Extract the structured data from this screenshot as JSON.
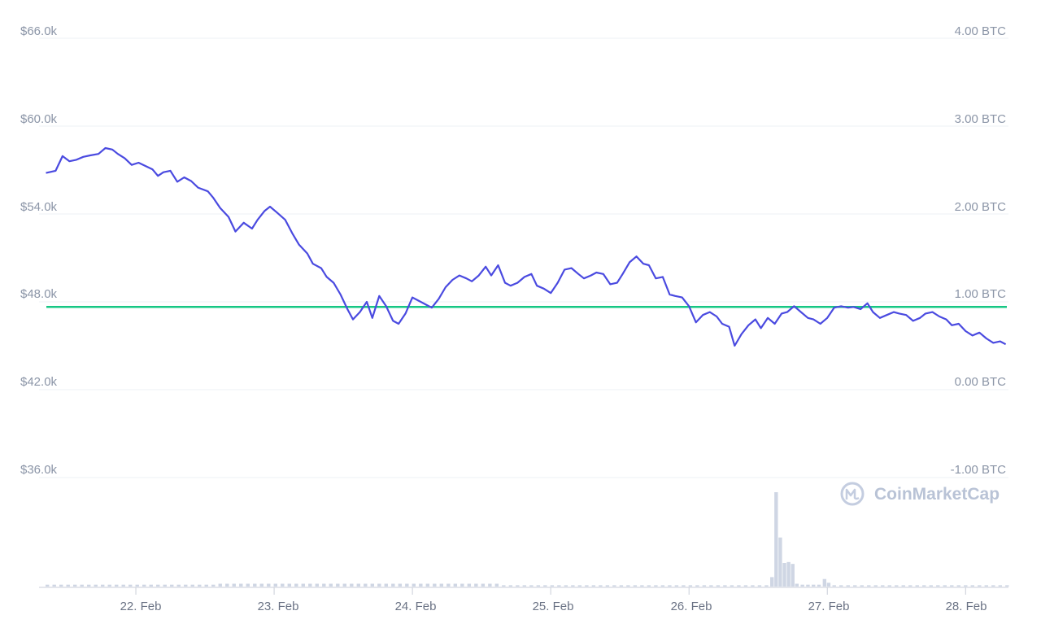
{
  "chart_data": {
    "type": "line",
    "watermark": "CoinMarketCap",
    "colors": {
      "price": "#4a4ae0",
      "reference": "#16c784",
      "volume": "#cfd6e4",
      "grid": "#eef1f6",
      "tick": "#8b95a7"
    },
    "y_left": {
      "ticks": [
        "$66.0k",
        "$60.0k",
        "$54.0k",
        "$48.0k",
        "$42.0k",
        "$36.0k"
      ],
      "range": [
        36000,
        66000
      ]
    },
    "y_right": {
      "ticks": [
        "4.00 BTC",
        "3.00 BTC",
        "2.00 BTC",
        "1.00 BTC",
        "0.00 BTC",
        "-1.00 BTC"
      ],
      "range": [
        -1,
        4
      ]
    },
    "x": {
      "ticks": [
        "22. Feb",
        "23. Feb",
        "24. Feb",
        "25. Feb",
        "26. Feb",
        "27. Feb",
        "28. Feb"
      ],
      "range": [
        21.3,
        28.31
      ]
    },
    "reference_line": {
      "value": 47650
    },
    "series": [
      {
        "values": [
          [
            21.35,
            56800
          ],
          [
            21.42,
            56950
          ],
          [
            21.47,
            57950
          ],
          [
            21.52,
            57600
          ],
          [
            21.57,
            57700
          ],
          [
            21.62,
            57900
          ],
          [
            21.67,
            58000
          ],
          [
            21.73,
            58100
          ],
          [
            21.78,
            58500
          ],
          [
            21.83,
            58400
          ],
          [
            21.87,
            58100
          ],
          [
            21.92,
            57800
          ],
          [
            21.97,
            57350
          ],
          [
            22.02,
            57500
          ],
          [
            22.12,
            57050
          ],
          [
            22.16,
            56600
          ],
          [
            22.2,
            56850
          ],
          [
            22.25,
            56950
          ],
          [
            22.3,
            56200
          ],
          [
            22.35,
            56500
          ],
          [
            22.4,
            56250
          ],
          [
            22.45,
            55800
          ],
          [
            22.52,
            55550
          ],
          [
            22.56,
            55100
          ],
          [
            22.61,
            54400
          ],
          [
            22.67,
            53800
          ],
          [
            22.72,
            52800
          ],
          [
            22.78,
            53400
          ],
          [
            22.84,
            53000
          ],
          [
            22.88,
            53600
          ],
          [
            22.93,
            54200
          ],
          [
            22.97,
            54500
          ],
          [
            23.02,
            54100
          ],
          [
            23.08,
            53600
          ],
          [
            23.13,
            52700
          ],
          [
            23.18,
            51900
          ],
          [
            23.24,
            51300
          ],
          [
            23.28,
            50600
          ],
          [
            23.34,
            50300
          ],
          [
            23.38,
            49700
          ],
          [
            23.43,
            49300
          ],
          [
            23.48,
            48500
          ],
          [
            23.53,
            47500
          ],
          [
            23.57,
            46800
          ],
          [
            23.62,
            47300
          ],
          [
            23.67,
            48000
          ],
          [
            23.71,
            46900
          ],
          [
            23.76,
            48400
          ],
          [
            23.81,
            47700
          ],
          [
            23.86,
            46700
          ],
          [
            23.9,
            46500
          ],
          [
            23.95,
            47200
          ],
          [
            24.0,
            48300
          ],
          [
            24.06,
            48000
          ],
          [
            24.1,
            47800
          ],
          [
            24.14,
            47600
          ],
          [
            24.19,
            48200
          ],
          [
            24.24,
            49000
          ],
          [
            24.29,
            49500
          ],
          [
            24.34,
            49800
          ],
          [
            24.39,
            49600
          ],
          [
            24.43,
            49400
          ],
          [
            24.48,
            49800
          ],
          [
            24.53,
            50400
          ],
          [
            24.57,
            49800
          ],
          [
            24.62,
            50500
          ],
          [
            24.67,
            49300
          ],
          [
            24.71,
            49100
          ],
          [
            24.76,
            49300
          ],
          [
            24.81,
            49700
          ],
          [
            24.86,
            49900
          ],
          [
            24.9,
            49100
          ],
          [
            24.95,
            48900
          ],
          [
            25.0,
            48600
          ],
          [
            25.05,
            49300
          ],
          [
            25.1,
            50200
          ],
          [
            25.15,
            50300
          ],
          [
            25.2,
            49900
          ],
          [
            25.24,
            49600
          ],
          [
            25.29,
            49800
          ],
          [
            25.33,
            50000
          ],
          [
            25.38,
            49900
          ],
          [
            25.43,
            49200
          ],
          [
            25.48,
            49300
          ],
          [
            25.52,
            49900
          ],
          [
            25.57,
            50700
          ],
          [
            25.62,
            51100
          ],
          [
            25.67,
            50600
          ],
          [
            25.71,
            50500
          ],
          [
            25.76,
            49600
          ],
          [
            25.81,
            49700
          ],
          [
            25.86,
            48500
          ],
          [
            25.9,
            48400
          ],
          [
            25.95,
            48300
          ],
          [
            26.0,
            47700
          ],
          [
            26.05,
            46600
          ],
          [
            26.1,
            47100
          ],
          [
            26.15,
            47300
          ],
          [
            26.2,
            47000
          ],
          [
            26.24,
            46500
          ],
          [
            26.29,
            46300
          ],
          [
            26.33,
            45000
          ],
          [
            26.38,
            45800
          ],
          [
            26.43,
            46400
          ],
          [
            26.48,
            46800
          ],
          [
            26.52,
            46200
          ],
          [
            26.57,
            46900
          ],
          [
            26.62,
            46500
          ],
          [
            26.67,
            47200
          ],
          [
            26.71,
            47300
          ],
          [
            26.76,
            47700
          ],
          [
            26.81,
            47300
          ],
          [
            26.86,
            46900
          ],
          [
            26.9,
            46800
          ],
          [
            26.95,
            46500
          ],
          [
            27.0,
            46900
          ],
          [
            27.05,
            47600
          ],
          [
            27.1,
            47700
          ],
          [
            27.15,
            47600
          ],
          [
            27.19,
            47650
          ],
          [
            27.24,
            47500
          ],
          [
            27.29,
            47900
          ],
          [
            27.33,
            47300
          ],
          [
            27.38,
            46900
          ],
          [
            27.43,
            47100
          ],
          [
            27.48,
            47300
          ],
          [
            27.52,
            47200
          ],
          [
            27.57,
            47100
          ],
          [
            27.62,
            46700
          ],
          [
            27.67,
            46900
          ],
          [
            27.71,
            47200
          ],
          [
            27.76,
            47300
          ],
          [
            27.81,
            47000
          ],
          [
            27.86,
            46800
          ],
          [
            27.9,
            46400
          ],
          [
            27.95,
            46500
          ],
          [
            28.0,
            46000
          ],
          [
            28.05,
            45700
          ],
          [
            28.1,
            45900
          ],
          [
            28.15,
            45500
          ],
          [
            28.2,
            45200
          ],
          [
            28.25,
            45300
          ],
          [
            28.29,
            45100
          ]
        ]
      }
    ],
    "volume": {
      "values": [
        [
          21.36,
          1
        ],
        [
          21.41,
          1
        ],
        [
          21.46,
          1
        ],
        [
          21.51,
          1
        ],
        [
          21.56,
          1
        ],
        [
          21.61,
          1
        ],
        [
          21.66,
          1
        ],
        [
          21.71,
          1
        ],
        [
          21.76,
          1
        ],
        [
          21.81,
          1
        ],
        [
          21.86,
          1
        ],
        [
          21.91,
          1
        ],
        [
          21.96,
          1
        ],
        [
          22.01,
          1
        ],
        [
          22.06,
          1
        ],
        [
          22.11,
          1
        ],
        [
          22.16,
          1
        ],
        [
          22.21,
          1
        ],
        [
          22.26,
          1
        ],
        [
          22.31,
          1
        ],
        [
          22.36,
          1
        ],
        [
          22.41,
          1
        ],
        [
          22.46,
          1
        ],
        [
          22.51,
          1
        ],
        [
          22.56,
          1
        ],
        [
          22.61,
          1.5
        ],
        [
          22.66,
          1.5
        ],
        [
          22.71,
          1.5
        ],
        [
          22.76,
          1.5
        ],
        [
          22.81,
          1.5
        ],
        [
          22.86,
          1.5
        ],
        [
          22.91,
          1.5
        ],
        [
          22.96,
          1.5
        ],
        [
          23.01,
          1.5
        ],
        [
          23.06,
          1.5
        ],
        [
          23.11,
          1.5
        ],
        [
          23.16,
          1.5
        ],
        [
          23.21,
          1.5
        ],
        [
          23.26,
          1.5
        ],
        [
          23.31,
          1.5
        ],
        [
          23.36,
          1.5
        ],
        [
          23.41,
          1.5
        ],
        [
          23.46,
          1.5
        ],
        [
          23.51,
          1.5
        ],
        [
          23.56,
          1.5
        ],
        [
          23.61,
          1.5
        ],
        [
          23.66,
          1.5
        ],
        [
          23.71,
          1.5
        ],
        [
          23.76,
          1.5
        ],
        [
          23.81,
          1.5
        ],
        [
          23.86,
          1.5
        ],
        [
          23.91,
          1.5
        ],
        [
          23.96,
          1.5
        ],
        [
          24.01,
          1.5
        ],
        [
          24.06,
          1.5
        ],
        [
          24.11,
          1.5
        ],
        [
          24.16,
          1.5
        ],
        [
          24.21,
          1.5
        ],
        [
          24.26,
          1.5
        ],
        [
          24.31,
          1.5
        ],
        [
          24.36,
          1.5
        ],
        [
          24.41,
          1.5
        ],
        [
          24.46,
          1.5
        ],
        [
          24.51,
          1.5
        ],
        [
          24.56,
          1.5
        ],
        [
          24.61,
          1.5
        ],
        [
          24.66,
          0.7
        ],
        [
          24.71,
          0.7
        ],
        [
          24.76,
          0.7
        ],
        [
          24.81,
          0.7
        ],
        [
          24.86,
          0.7
        ],
        [
          24.91,
          0.7
        ],
        [
          24.96,
          0.7
        ],
        [
          25.01,
          0.7
        ],
        [
          25.06,
          0.7
        ],
        [
          25.11,
          0.7
        ],
        [
          25.16,
          0.7
        ],
        [
          25.21,
          0.7
        ],
        [
          25.26,
          0.7
        ],
        [
          25.31,
          0.7
        ],
        [
          25.36,
          0.7
        ],
        [
          25.41,
          0.7
        ],
        [
          25.46,
          0.7
        ],
        [
          25.51,
          0.7
        ],
        [
          25.56,
          0.7
        ],
        [
          25.61,
          0.7
        ],
        [
          25.66,
          0.7
        ],
        [
          25.71,
          0.7
        ],
        [
          25.76,
          0.7
        ],
        [
          25.81,
          0.7
        ],
        [
          25.86,
          0.7
        ],
        [
          25.91,
          0.7
        ],
        [
          25.96,
          0.7
        ],
        [
          26.01,
          0.7
        ],
        [
          26.06,
          0.7
        ],
        [
          26.11,
          0.7
        ],
        [
          26.16,
          0.7
        ],
        [
          26.21,
          0.7
        ],
        [
          26.26,
          0.7
        ],
        [
          26.31,
          0.7
        ],
        [
          26.36,
          0.7
        ],
        [
          26.41,
          0.7
        ],
        [
          26.46,
          0.7
        ],
        [
          26.51,
          0.7
        ],
        [
          26.56,
          0.7
        ],
        [
          26.6,
          5
        ],
        [
          26.63,
          50
        ],
        [
          26.66,
          26
        ],
        [
          26.69,
          12.5
        ],
        [
          26.72,
          13
        ],
        [
          26.75,
          12
        ],
        [
          26.78,
          1.5
        ],
        [
          26.82,
          1
        ],
        [
          26.86,
          1
        ],
        [
          26.9,
          1
        ],
        [
          26.94,
          1
        ],
        [
          26.98,
          4
        ],
        [
          27.01,
          2
        ],
        [
          27.05,
          0.7
        ],
        [
          27.1,
          0.7
        ],
        [
          27.15,
          0.7
        ],
        [
          27.2,
          0.7
        ],
        [
          27.25,
          0.7
        ],
        [
          27.3,
          0.7
        ],
        [
          27.35,
          0.7
        ],
        [
          27.4,
          0.7
        ],
        [
          27.45,
          0.7
        ],
        [
          27.5,
          0.7
        ],
        [
          27.55,
          0.7
        ],
        [
          27.6,
          0.7
        ],
        [
          27.65,
          0.7
        ],
        [
          27.7,
          0.7
        ],
        [
          27.75,
          0.7
        ],
        [
          27.8,
          0.7
        ],
        [
          27.85,
          0.7
        ],
        [
          27.9,
          0.7
        ],
        [
          27.95,
          0.7
        ],
        [
          28.0,
          0.7
        ],
        [
          28.05,
          0.7
        ],
        [
          28.1,
          0.7
        ],
        [
          28.15,
          0.7
        ],
        [
          28.2,
          0.7
        ],
        [
          28.25,
          0.7
        ],
        [
          28.3,
          0.7
        ]
      ],
      "max": 50
    }
  }
}
